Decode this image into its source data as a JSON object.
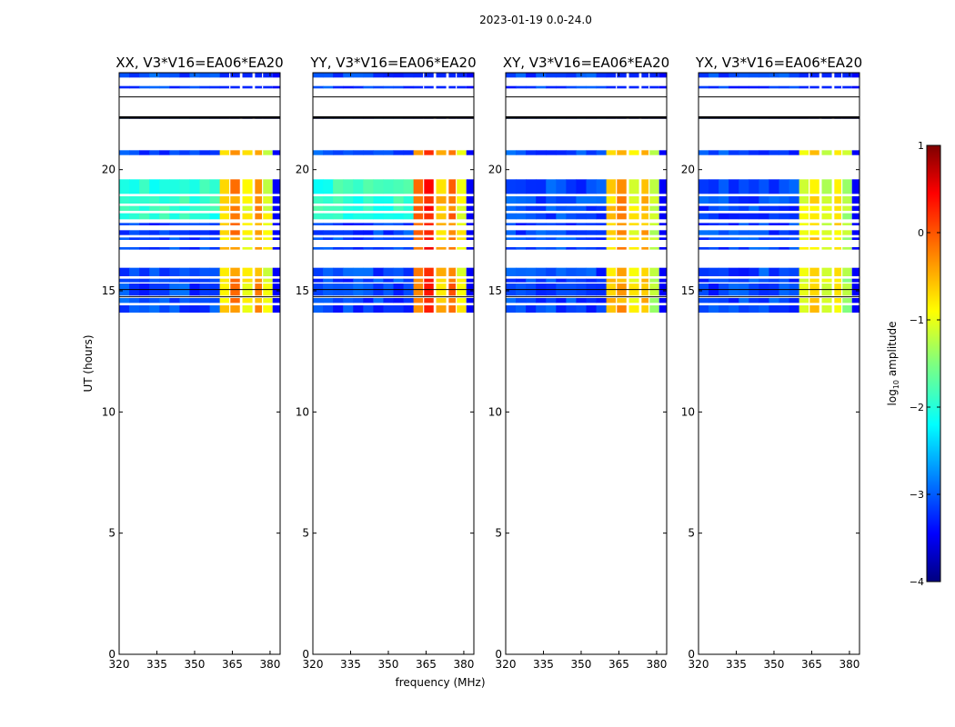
{
  "figure": {
    "suptitle": "2023-01-19 0.0-24.0",
    "xlabel": "frequency (MHz)",
    "ylabel": "UT (hours)",
    "colorbar_label": "log",
    "colorbar_label_sub": "10",
    "colorbar_label_suffix": " amplitude"
  },
  "chart_data": {
    "type": "heatmap",
    "xlim": [
      320,
      384
    ],
    "ylim": [
      0,
      24
    ],
    "xticks": [
      320,
      335,
      350,
      365,
      380
    ],
    "yticks": [
      0,
      5,
      10,
      15,
      20
    ],
    "colorbar": {
      "vmin": -4,
      "vmax": 1,
      "ticks": [
        1,
        0,
        -1,
        -2,
        -3,
        -4
      ],
      "colormap": "jet"
    },
    "panels": [
      {
        "title": "XX, V3*V16=EA06*EA20",
        "parallel_hand": true,
        "band_level": [
          -0.7,
          -0.3,
          -0.9,
          -0.4,
          -1.0
        ]
      },
      {
        "title": "YY, V3*V16=EA06*EA20",
        "parallel_hand": true,
        "band_level": [
          -0.2,
          0.3,
          -0.6,
          -0.2,
          -0.9
        ]
      },
      {
        "title": "XY, V3*V16=EA06*EA20",
        "parallel_hand": false,
        "band_level": [
          -0.6,
          -0.4,
          -0.9,
          -0.5,
          -1.2
        ]
      },
      {
        "title": "YX, V3*V16=EA06*EA20",
        "parallel_hand": false,
        "band_level": [
          -1.0,
          -0.7,
          -1.1,
          -0.8,
          -1.3
        ]
      }
    ],
    "freq_bands_mhz": [
      [
        360,
        364
      ],
      [
        364,
        368
      ],
      [
        369,
        373
      ],
      [
        374,
        377
      ],
      [
        377,
        381
      ]
    ],
    "data_rows_ut": [
      [
        23.8,
        24.0
      ],
      [
        23.35,
        23.45
      ],
      [
        22.1,
        22.2
      ],
      [
        20.6,
        20.8
      ],
      [
        19.0,
        19.6
      ],
      [
        18.6,
        18.9
      ],
      [
        18.3,
        18.5
      ],
      [
        17.95,
        18.2
      ],
      [
        17.7,
        17.8
      ],
      [
        17.3,
        17.5
      ],
      [
        17.1,
        17.2
      ],
      [
        16.7,
        16.8
      ],
      [
        15.6,
        15.95
      ],
      [
        15.35,
        15.5
      ],
      [
        14.8,
        15.3
      ],
      [
        14.5,
        14.7
      ],
      [
        14.1,
        14.4
      ]
    ]
  }
}
